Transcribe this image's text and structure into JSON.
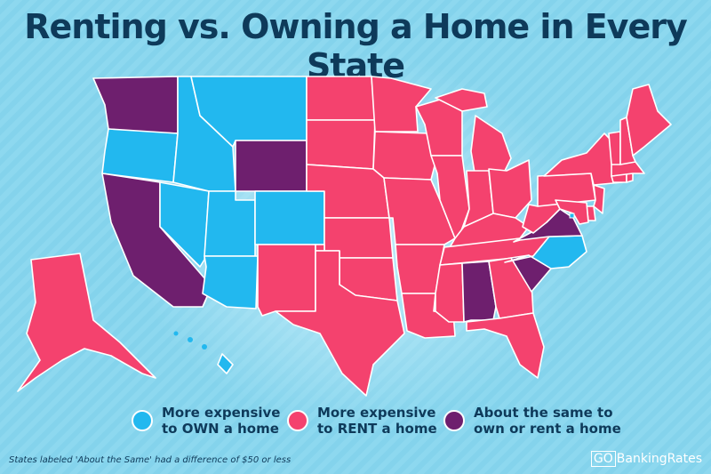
{
  "title": "Renting vs. Owning a Home in Every State",
  "colors": {
    "own": "#22b8ef",
    "rent": "#f4426e",
    "same": "#6e1f6e",
    "title": "#0e3a5a"
  },
  "states": {
    "own": [
      "OR",
      "ID",
      "MT",
      "NV",
      "UT",
      "CO",
      "AZ",
      "NC",
      "DC",
      "HI"
    ],
    "same": [
      "WA",
      "CA",
      "WY",
      "VA",
      "SC",
      "AL"
    ],
    "rent": [
      "AK",
      "NM",
      "ND",
      "SD",
      "NE",
      "KS",
      "OK",
      "TX",
      "MN",
      "IA",
      "MO",
      "AR",
      "LA",
      "WI",
      "IL",
      "MI",
      "IN",
      "OH",
      "KY",
      "TN",
      "MS",
      "GA",
      "FL",
      "WV",
      "PA",
      "NY",
      "NJ",
      "DE",
      "MD",
      "CT",
      "RI",
      "MA",
      "VT",
      "NH",
      "ME"
    ]
  },
  "legend": [
    {
      "key": "own",
      "label": "More expensive\nto OWN a home"
    },
    {
      "key": "rent",
      "label": "More expensive\nto RENT a home"
    },
    {
      "key": "same",
      "label": "About the same to\nown or rent a home"
    }
  ],
  "footnote": "States labeled 'About the Same' had a difference of $50 or less",
  "brand": {
    "go": "GO",
    "name": "BankingRates"
  }
}
